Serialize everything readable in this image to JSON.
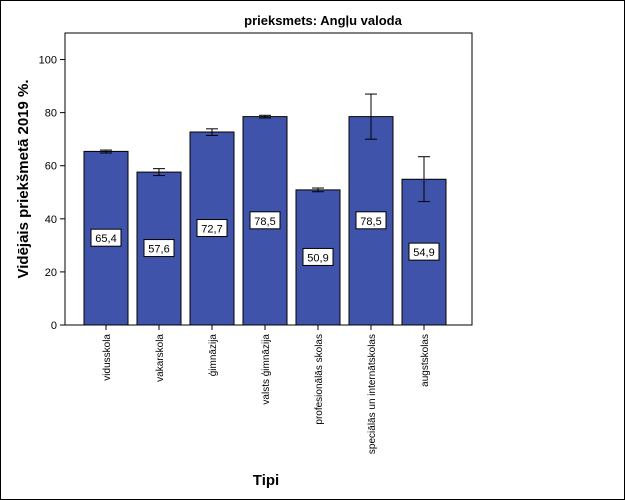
{
  "chart_data": {
    "type": "bar",
    "title": "prieksmets: Angļu valoda",
    "xlabel": "Tipi",
    "ylabel": "Vidējais priekšmetā 2019 %.",
    "ylim": [
      0,
      110
    ],
    "yticks": [
      0,
      20,
      40,
      60,
      80,
      100
    ],
    "grid": false,
    "error_bars": true,
    "categories": [
      "vidusskola",
      "vakarskola",
      "ģimnāzija",
      "valsts ģimnāzija",
      "profesionālās skolas",
      "speciālās un internātskolas",
      "augstskolas"
    ],
    "values": [
      65.4,
      57.6,
      72.7,
      78.5,
      50.9,
      78.5,
      54.9
    ],
    "value_labels": [
      "65,4",
      "57,6",
      "72,7",
      "78,5",
      "50,9",
      "78,5",
      "54,9"
    ],
    "error_low": [
      64.8,
      56.3,
      71.4,
      78.0,
      50.2,
      70.0,
      46.5
    ],
    "error_high": [
      65.9,
      58.9,
      73.9,
      79.0,
      51.6,
      87.0,
      63.4
    ],
    "colors": {
      "bar_fill": "#3F53AA",
      "bar_stroke": "#000000",
      "axis": "#000000"
    }
  }
}
